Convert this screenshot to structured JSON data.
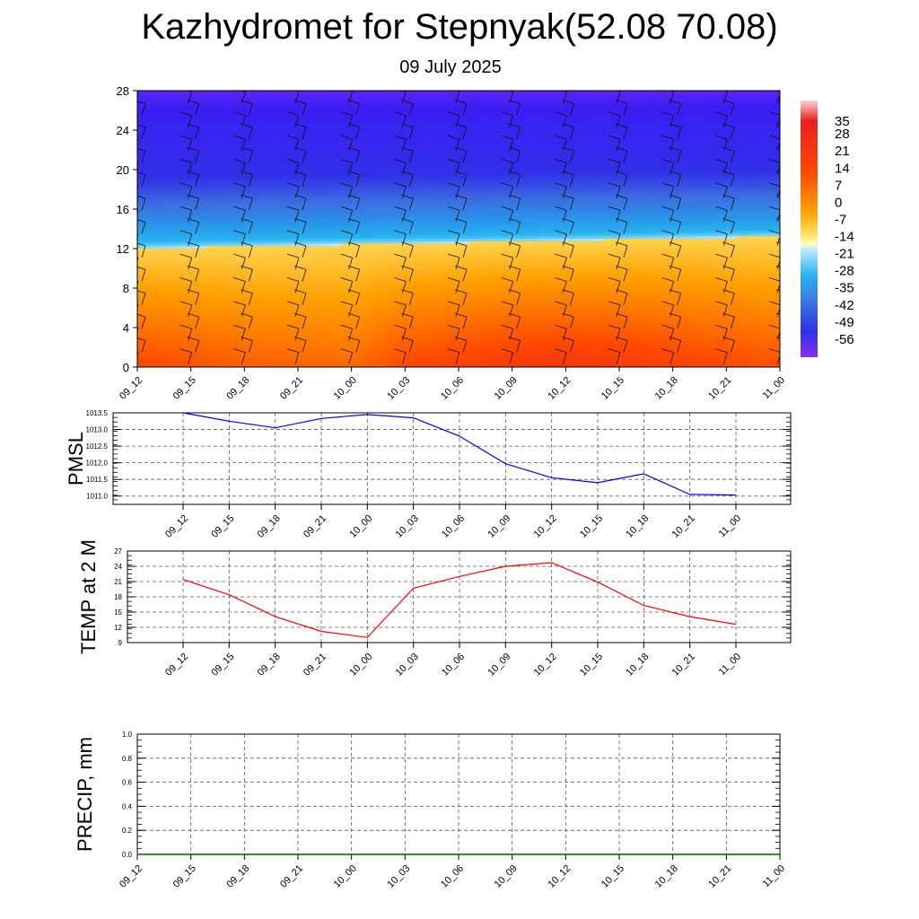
{
  "header": {
    "title": "Kazhydromet for Stepnyak(52.08 70.08)",
    "date": "09 July 2025"
  },
  "time_labels": [
    "09_12",
    "09_15",
    "09_18",
    "09_21",
    "10_00",
    "10_03",
    "10_06",
    "10_09",
    "10_12",
    "10_15",
    "10_18",
    "10_21",
    "11_00"
  ],
  "chart_data": [
    {
      "type": "heatmap",
      "variable": "temperature with wind barbs",
      "x": [
        "09_12",
        "09_15",
        "09_18",
        "09_21",
        "10_00",
        "10_03",
        "10_06",
        "10_09",
        "10_12",
        "10_15",
        "10_18",
        "10_21",
        "11_00"
      ],
      "ylim": [
        0,
        28
      ],
      "yticks": [
        0,
        4,
        8,
        12,
        16,
        20,
        24,
        28
      ],
      "zero_isotherm_level": [
        12.0,
        12.1,
        12.2,
        12.3,
        12.4,
        12.5,
        12.6,
        12.7,
        12.8,
        12.9,
        13.0,
        13.1,
        13.2
      ],
      "surface_warmth": [
        22,
        20,
        18,
        17,
        16,
        22,
        24,
        26,
        27,
        26,
        24,
        22,
        20
      ],
      "colorbar": {
        "labels": [
          "35",
          "28",
          "21",
          "14",
          "7",
          "0",
          "-7",
          "-14",
          "-21",
          "-28",
          "-35",
          "-42",
          "-49",
          "-56"
        ],
        "range": [
          -63,
          42
        ]
      }
    },
    {
      "type": "line",
      "ylabel": "PMSL",
      "x": [
        "09_12",
        "09_15",
        "09_18",
        "09_21",
        "10_00",
        "10_03",
        "10_06",
        "10_09",
        "10_12",
        "10_15",
        "10_18",
        "10_21",
        "11_00"
      ],
      "series": [
        {
          "values": [
            1013.5,
            1013.25,
            1013.05,
            1013.33,
            1013.45,
            1013.35,
            1012.8,
            1011.97,
            1011.55,
            1011.4,
            1011.67,
            1011.05,
            1011.03
          ],
          "color": "#0000ff"
        }
      ],
      "ylim": [
        1010.75,
        1013.5
      ],
      "yticks": [
        "1011.0",
        "1011.5",
        "1012.0",
        "1012.5",
        "1013.0",
        "1013.5"
      ],
      "grid": true
    },
    {
      "type": "line",
      "ylabel": "TEMP at 2 M",
      "x": [
        "09_12",
        "09_15",
        "09_18",
        "09_21",
        "10_00",
        "10_03",
        "10_06",
        "10_09",
        "10_12",
        "10_15",
        "10_18",
        "10_21",
        "11_00"
      ],
      "series": [
        {
          "values": [
            21.4,
            18.4,
            14.1,
            11.2,
            10.0,
            19.7,
            22.0,
            24.0,
            24.7,
            20.9,
            16.3,
            14.1,
            12.6
          ],
          "color": "#ff0000"
        }
      ],
      "ylim": [
        9,
        27
      ],
      "yticks": [
        "9",
        "12",
        "15",
        "18",
        "21",
        "24",
        "27"
      ],
      "grid": true
    },
    {
      "type": "line",
      "ylabel": "PRECIP, mm",
      "x": [
        "09_12",
        "09_15",
        "09_18",
        "09_21",
        "10_00",
        "10_03",
        "10_06",
        "10_09",
        "10_12",
        "10_15",
        "10_18",
        "10_21",
        "11_00"
      ],
      "series": [
        {
          "values": [
            0,
            0,
            0,
            0,
            0,
            0,
            0,
            0,
            0,
            0,
            0,
            0,
            0
          ],
          "color": "#006400"
        }
      ],
      "ylim": [
        0,
        1
      ],
      "yticks": [
        "0.0",
        "0.2",
        "0.4",
        "0.6",
        "0.8",
        "1.0"
      ],
      "grid": true
    }
  ]
}
